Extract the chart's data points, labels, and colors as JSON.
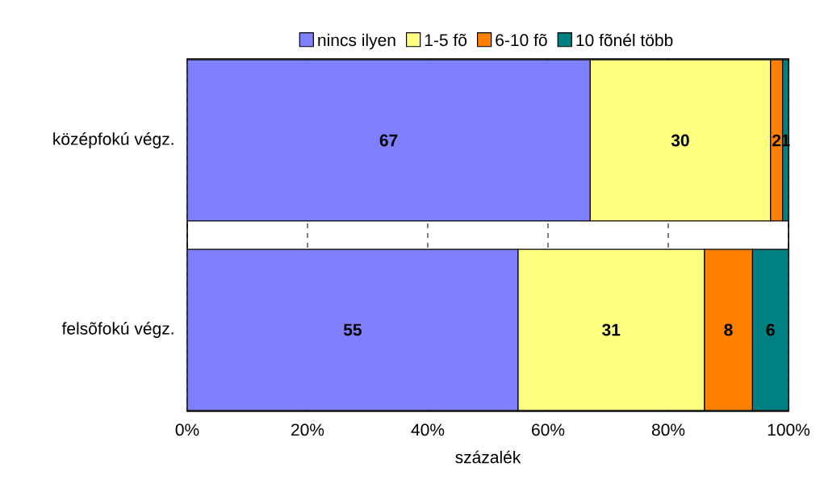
{
  "chart_data": {
    "type": "bar",
    "orientation": "horizontal",
    "stacked": true,
    "categories": [
      "középfokú végz.",
      "felsõfokú végz."
    ],
    "series": [
      {
        "name": "nincs ilyen",
        "color": "#8080ff",
        "values": [
          67,
          55
        ]
      },
      {
        "name": "1-5 fõ",
        "color": "#ffff80",
        "values": [
          30,
          31
        ]
      },
      {
        "name": "6-10 fõ",
        "color": "#ff8000",
        "values": [
          2,
          8
        ]
      },
      {
        "name": "10 fõnél több",
        "color": "#008080",
        "values": [
          1,
          6
        ]
      }
    ],
    "xlim": [
      0,
      100
    ],
    "xticks": [
      {
        "value": 0,
        "label": "0%"
      },
      {
        "value": 20,
        "label": "20%"
      },
      {
        "value": 40,
        "label": "40%"
      },
      {
        "value": 60,
        "label": "60%"
      },
      {
        "value": 80,
        "label": "80%"
      },
      {
        "value": 100,
        "label": "100%"
      }
    ],
    "xlabel": "százalék",
    "grid": "x",
    "legend": "top",
    "data_labels": true
  }
}
